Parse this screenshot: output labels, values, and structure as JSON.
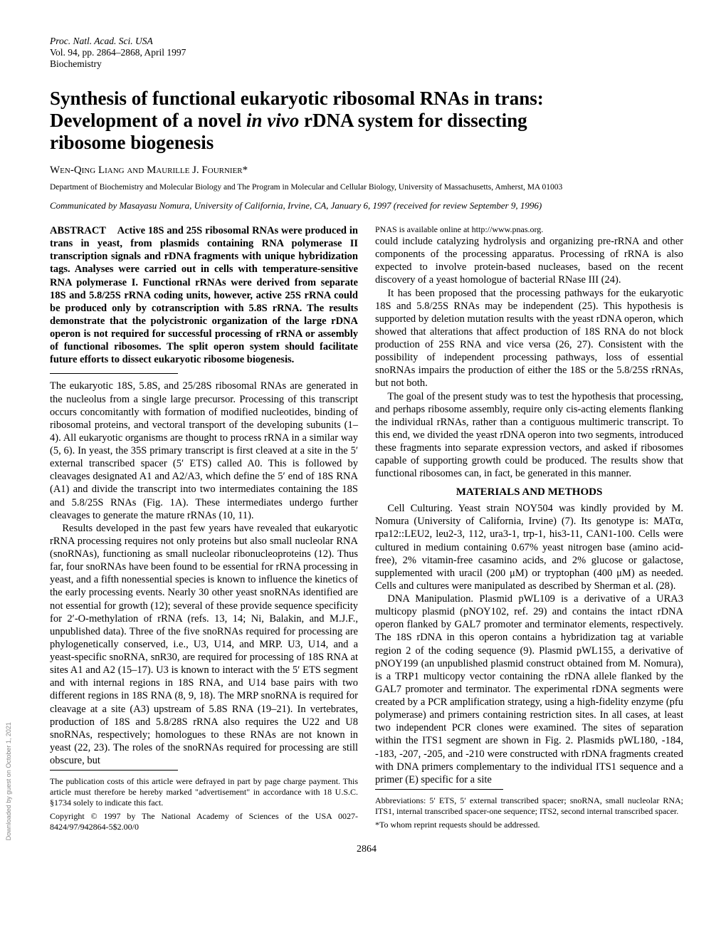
{
  "header": {
    "journal": "Proc. Natl. Acad. Sci. USA",
    "volpages": "Vol. 94, pp. 2864–2868, April 1997",
    "subject": "Biochemistry"
  },
  "title_line1": "Synthesis of functional eukaryotic ribosomal RNAs in trans:",
  "title_line2a": "Development of a novel ",
  "title_line2_ital": "in vivo",
  "title_line2b": " rDNA system for dissecting",
  "title_line3": "ribosome biogenesis",
  "authors": "Wen-Qing Liang and Maurille J. Fournier*",
  "dept": "Department of Biochemistry and Molecular Biology and The Program in Molecular and Cellular Biology, University of Massachusetts, Amherst, MA 01003",
  "communicated": "Communicated by Masayasu Nomura, University of California, Irvine, CA, January 6, 1997 (received for review September 9, 1996)",
  "abstract_label": "ABSTRACT",
  "abstract_body": "Active 18S and 25S ribosomal RNAs were produced in trans in yeast, from plasmids containing RNA polymerase II transcription signals and rDNA fragments with unique hybridization tags. Analyses were carried out in cells with temperature-sensitive RNA polymerase I. Functional rRNAs were derived from separate 18S and 5.8/25S rRNA coding units, however, active 25S rRNA could be produced only by cotranscription with 5.8S rRNA. The results demonstrate that the polycistronic organization of the large rDNA operon is not required for successful processing of rRNA or assembly of functional ribosomes. The split operon system should facilitate future efforts to dissect eukaryotic ribosome biogenesis.",
  "intro_p1": "The eukaryotic 18S, 5.8S, and 25/28S ribosomal RNAs are generated in the nucleolus from a single large precursor. Processing of this transcript occurs concomitantly with formation of modified nucleotides, binding of ribosomal proteins, and vectoral transport of the developing subunits (1–4). All eukaryotic organisms are thought to process rRNA in a similar way (5, 6). In yeast, the 35S primary transcript is first cleaved at a site in the 5′ external transcribed spacer (5′ ETS) called A0. This is followed by cleavages designated A1 and A2/A3, which define the 5′ end of 18S RNA (A1) and divide the transcript into two intermediates containing the 18S and 5.8/25S RNAs (Fig. 1A). These intermediates undergo further cleavages to generate the mature rRNAs (10, 11).",
  "intro_p2": "Results developed in the past few years have revealed that eukaryotic rRNA processing requires not only proteins but also small nucleolar RNA (snoRNAs), functioning as small nucleolar ribonucleoproteins (12). Thus far, four snoRNAs have been found to be essential for rRNA processing in yeast, and a fifth nonessential species is known to influence the kinetics of the early processing events. Nearly 30 other yeast snoRNAs identified are not essential for growth (12); several of these provide sequence specificity for 2′-O-methylation of rRNA (refs. 13, 14; Ni, Balakin, and M.J.F., unpublished data). Three of the five snoRNAs required for processing are phylogenetically conserved, i.e., U3, U14, and MRP. U3, U14, and a yeast-specific snoRNA, snR30, are required for processing of 18S RNA at sites A1 and A2 (15–17). U3 is known to interact with the 5′ ETS segment and with internal regions in 18S RNA, and U14 base pairs with two different regions in 18S RNA (8, 9, 18). The MRP snoRNA is required for cleavage at a site (A3) upstream of 5.8S RNA (19–21). In vertebrates, production of 18S and 5.8/28S rRNA also requires the U22 and U8 snoRNAs, respectively; homologues to these RNAs are not known in yeast (22, 23). The roles of the snoRNAs required for processing are still obscure, but",
  "footnote_pub": "The publication costs of this article were defrayed in part by page charge payment. This article must therefore be hereby marked \"advertisement\" in accordance with 18 U.S.C. §1734 solely to indicate this fact.",
  "footnote_copyright": "Copyright © 1997 by The National Academy of Sciences of the USA 0027-8424/97/942864-5$2.00/0",
  "footnote_url": "PNAS is available online at http://www.pnas.org.",
  "col2_p1": "could include catalyzing hydrolysis and organizing pre-rRNA and other components of the processing apparatus. Processing of rRNA is also expected to involve protein-based nucleases, based on the recent discovery of a yeast homologue of bacterial RNase III (24).",
  "col2_p2": "It has been proposed that the processing pathways for the eukaryotic 18S and 5.8/25S RNAs may be independent (25). This hypothesis is supported by deletion mutation results with the yeast rDNA operon, which showed that alterations that affect production of 18S RNA do not block production of 25S RNA and vice versa (26, 27). Consistent with the possibility of independent processing pathways, loss of essential snoRNAs impairs the production of either the 18S or the 5.8/25S rRNAs, but not both.",
  "col2_p3": "The goal of the present study was to test the hypothesis that processing, and perhaps ribosome assembly, require only cis-acting elements flanking the individual rRNAs, rather than a contiguous multimeric transcript. To this end, we divided the yeast rDNA operon into two segments, introduced these fragments into separate expression vectors, and asked if ribosomes capable of supporting growth could be produced. The results show that functional ribosomes can, in fact, be generated in this manner.",
  "mm_head": "MATERIALS AND METHODS",
  "mm_p1": "Cell Culturing. Yeast strain NOY504 was kindly provided by M. Nomura (University of California, Irvine) (7). Its genotype is: MATα, rpa12::LEU2, leu2-3, 112, ura3-1, trp-1, his3-11, CAN1-100. Cells were cultured in medium containing 0.67% yeast nitrogen base (amino acid-free), 2% vitamin-free casamino acids, and 2% glucose or galactose, supplemented with uracil (200 μM) or tryptophan (400 μM) as needed. Cells and cultures were manipulated as described by Sherman et al. (28).",
  "mm_p2": "DNA Manipulation. Plasmid pWL109 is a derivative of a URA3 multicopy plasmid (pNOY102, ref. 29) and contains the intact rDNA operon flanked by GAL7 promoter and terminator elements, respectively. The 18S rDNA in this operon contains a hybridization tag at variable region 2 of the coding sequence (9). Plasmid pWL155, a derivative of pNOY199 (an unpublished plasmid construct obtained from M. Nomura), is a TRP1 multicopy vector containing the rDNA allele flanked by the GAL7 promoter and terminator. The experimental rDNA segments were created by a PCR amplification strategy, using a high-fidelity enzyme (pfu polymerase) and primers containing restriction sites. In all cases, at least two independent PCR clones were examined. The sites of separation within the ITS1 segment are shown in Fig. 2. Plasmids pWL180, -184, -183, -207, -205, and -210 were constructed with rDNA fragments created with DNA primers complementary to the individual ITS1 sequence and a primer (E) specific for a site",
  "footnote_abbrev": "Abbreviations: 5′ ETS, 5′ external transcribed spacer; snoRNA, small nucleolar RNA; ITS1, internal transcribed spacer-one sequence; ITS2, second internal transcribed spacer.",
  "footnote_corr": "*To whom reprint requests should be addressed.",
  "page_num": "2864",
  "watermark": "Downloaded by guest on October 1, 2021"
}
